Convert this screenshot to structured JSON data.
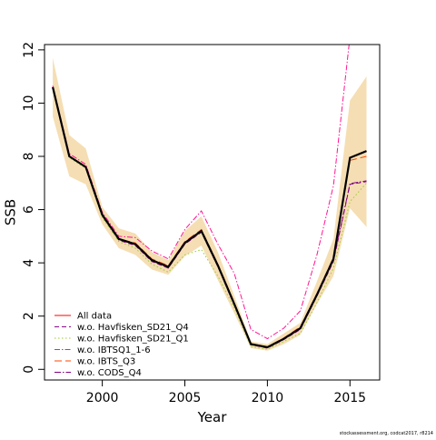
{
  "chart_data": {
    "type": "line",
    "xlabel": "Year",
    "ylabel": "SSB",
    "xlim": [
      1996.5,
      2016.8
    ],
    "ylim": [
      -0.4,
      12.2
    ],
    "xticks": [
      2000,
      2005,
      2010,
      2015
    ],
    "yticks": [
      0,
      2,
      4,
      6,
      8,
      10,
      12
    ],
    "legend_position": "bottom-left",
    "x": [
      1997,
      1998,
      1999,
      2000,
      2001,
      2002,
      2003,
      2004,
      2005,
      2006,
      2007,
      2008,
      2009,
      2010,
      2011,
      2012,
      2013,
      2014,
      2015,
      2016
    ],
    "band": {
      "color": "#f5deb3",
      "upper": [
        11.7,
        8.8,
        8.3,
        6.1,
        5.3,
        5.1,
        4.4,
        4.1,
        5.2,
        5.75,
        4.4,
        2.75,
        1.05,
        0.95,
        1.35,
        1.75,
        3.3,
        4.9,
        10.1,
        11.0
      ],
      "lower": [
        9.5,
        7.25,
        6.95,
        5.45,
        4.55,
        4.3,
        3.75,
        3.55,
        4.25,
        4.65,
        3.35,
        2.1,
        0.8,
        0.7,
        0.95,
        1.3,
        2.45,
        3.5,
        6.05,
        5.35
      ]
    },
    "series": [
      {
        "name": "All data",
        "color": "#ff0000",
        "dash": "none",
        "values": [
          10.6,
          8.0,
          7.6,
          5.8,
          4.9,
          4.7,
          4.1,
          3.85,
          4.75,
          5.2,
          3.9,
          2.45,
          0.95,
          0.83,
          1.15,
          1.55,
          2.8,
          4.15,
          7.95,
          8.2
        ]
      },
      {
        "name": "w.o. Havfisken_SD21_Q4",
        "color": "#8b0a8b",
        "dash": "5,3",
        "values": [
          10.6,
          8.0,
          7.6,
          5.75,
          4.85,
          4.65,
          4.05,
          3.8,
          4.7,
          5.15,
          3.85,
          2.4,
          0.92,
          0.8,
          1.12,
          1.5,
          2.75,
          4.05,
          6.95,
          7.05
        ]
      },
      {
        "name": "w.o. Havfisken_SD21_Q1",
        "color": "#9acd32",
        "dash": "1.5,2.5",
        "values": [
          10.55,
          7.95,
          7.55,
          5.7,
          4.8,
          4.55,
          3.95,
          3.65,
          4.3,
          4.5,
          3.5,
          2.3,
          0.85,
          0.75,
          1.05,
          1.35,
          2.5,
          3.8,
          6.3,
          7.0
        ]
      },
      {
        "name": "w.o. IBTSQ1_1-6",
        "color": "#ff1493",
        "dash": "6,2,1.5,2",
        "values": [
          10.65,
          8.1,
          7.7,
          5.9,
          5.0,
          4.95,
          4.45,
          4.15,
          5.25,
          5.95,
          4.7,
          3.6,
          1.5,
          1.15,
          1.55,
          2.2,
          4.3,
          6.9,
          12.5,
          12.5
        ]
      },
      {
        "name": "w.o. IBTS_Q3",
        "color": "#ff4500",
        "dash": "8,4",
        "values": [
          10.6,
          8.0,
          7.6,
          5.8,
          4.9,
          4.75,
          4.15,
          3.9,
          4.8,
          5.25,
          3.95,
          2.5,
          0.97,
          0.85,
          1.18,
          1.6,
          2.85,
          4.2,
          7.85,
          8.0
        ]
      },
      {
        "name": "w.o. CODS_Q4",
        "color": "#800080",
        "dash": "7,2,1.5,2",
        "values": [
          10.6,
          8.0,
          7.6,
          5.78,
          4.88,
          4.68,
          4.08,
          3.82,
          4.72,
          5.18,
          3.88,
          2.42,
          0.93,
          0.82,
          1.13,
          1.52,
          2.78,
          4.1,
          6.98,
          7.08
        ]
      },
      {
        "name": "",
        "color": "#000000",
        "dash": "none",
        "width": 2.2,
        "values": [
          10.6,
          8.0,
          7.6,
          5.8,
          4.9,
          4.7,
          4.1,
          3.85,
          4.75,
          5.2,
          3.9,
          2.45,
          0.95,
          0.83,
          1.15,
          1.55,
          2.8,
          4.15,
          7.95,
          8.2
        ]
      }
    ],
    "footnote": "stockassessment.org, codcat2017, r8214"
  }
}
